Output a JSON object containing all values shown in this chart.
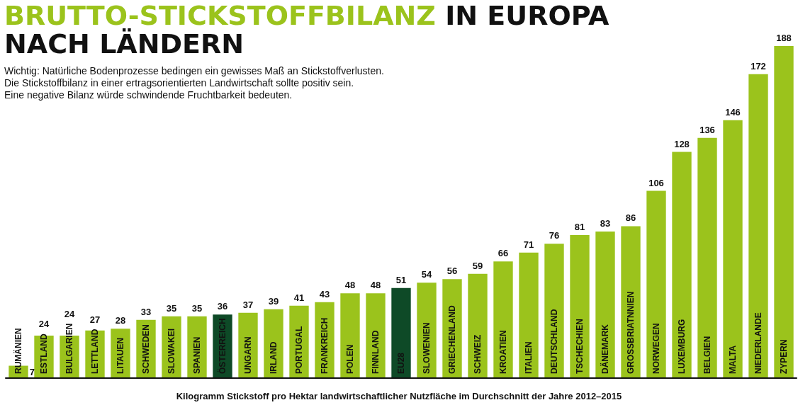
{
  "chart_data": {
    "type": "bar",
    "title": "BRUTTO-STICKSTOFFBILANZ IN EUROPA NACH LÄNDERN",
    "subtitle": "Wichtig: Natürliche Bodenprozesse bedingen ein gewisses Maß an Stickstoffverlusten.\nDie Stickstoffbilanz in einer ertragsorientierten Landwirtschaft sollte positiv sein.\nEine negative Bilanz würde schwindende Fruchtbarkeit bedeuten.",
    "xlabel": "Kilogramm Stickstoff pro Hektar landwirtschaftlicher Nutzfläche im Durchschnitt der Jahre 2012–2015",
    "categories": [
      "RUMÄNIEN",
      "ESTLAND",
      "BULGARIEN",
      "LETTLAND",
      "LITAUEN",
      "SCHWEDEN",
      "SLOWAKEI",
      "SPANIEN",
      "ÖSTERREICH",
      "UNGARN",
      "IRLAND",
      "PORTUGAL",
      "FRANKREICH",
      "POLEN",
      "FINNLAND",
      "EU28",
      "SLOWENIEN",
      "GRIECHENLAND",
      "SCHWEIZ",
      "KROATIEN",
      "ITALIEN",
      "DEUTSCHLAND",
      "TSCHECHIEN",
      "DÄNEMARK",
      "GROSSBRIATNNIEN",
      "NORWEGEN",
      "LUXEMBURG",
      "BELGIEN",
      "MALTA",
      "NIEDERLANDE",
      "ZYPERN"
    ],
    "values": [
      7,
      24,
      24,
      27,
      28,
      33,
      35,
      35,
      36,
      37,
      39,
      41,
      43,
      48,
      48,
      51,
      54,
      56,
      59,
      66,
      71,
      76,
      81,
      83,
      86,
      106,
      128,
      136,
      146,
      172,
      188
    ],
    "colors": [
      "#9bc31c",
      "#9bc31c",
      "#9bc31c",
      "#9bc31c",
      "#9bc31c",
      "#9bc31c",
      "#9bc31c",
      "#9bc31c",
      "#0e4a27",
      "#9bc31c",
      "#9bc31c",
      "#9bc31c",
      "#9bc31c",
      "#9bc31c",
      "#9bc31c",
      "#0e4a27",
      "#9bc31c",
      "#9bc31c",
      "#9bc31c",
      "#9bc31c",
      "#9bc31c",
      "#9bc31c",
      "#9bc31c",
      "#9bc31c",
      "#9bc31c",
      "#9bc31c",
      "#9bc31c",
      "#9bc31c",
      "#9bc31c",
      "#9bc31c",
      "#9bc31c"
    ],
    "data_labels": true,
    "grid": false
  }
}
